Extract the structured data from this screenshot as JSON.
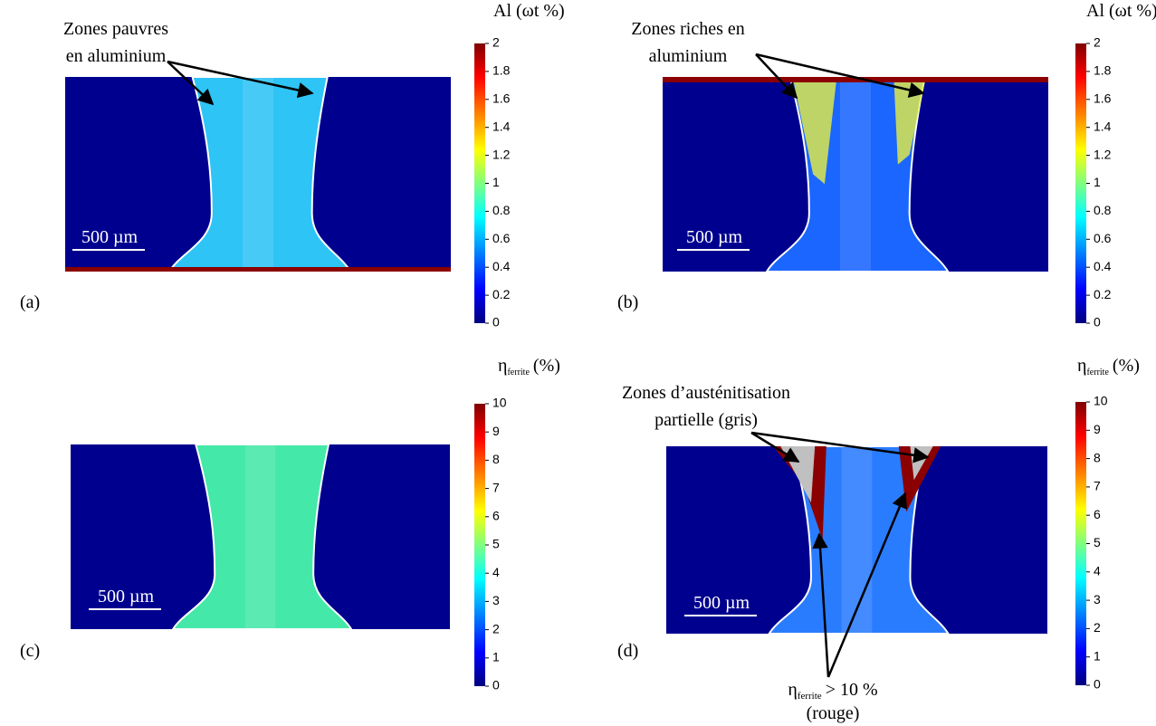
{
  "panels": [
    {
      "label": "(a)",
      "colorbar": {
        "title": "Al (ωt %)",
        "ticks": [
          0,
          0.2,
          0.4,
          0.6,
          0.8,
          1,
          1.2,
          1.4,
          1.6,
          1.8,
          2
        ]
      },
      "scale_bar": "500 µm",
      "annotation": {
        "lines": [
          "Zones pauvres",
          "en aluminium"
        ]
      }
    },
    {
      "label": "(b)",
      "colorbar": {
        "title": "Al (ωt %)",
        "ticks": [
          0,
          0.2,
          0.4,
          0.6,
          0.8,
          1,
          1.2,
          1.4,
          1.6,
          1.8,
          2
        ]
      },
      "scale_bar": "500 µm",
      "annotation": {
        "lines": [
          "Zones riches en",
          "aluminium"
        ]
      }
    },
    {
      "label": "(c)",
      "colorbar": {
        "title": {
          "symbol": "η",
          "subscript": "ferrite",
          "unit": "(%)"
        },
        "ticks": [
          0,
          1,
          2,
          3,
          4,
          5,
          6,
          7,
          8,
          9,
          10
        ]
      },
      "scale_bar": "500 µm"
    },
    {
      "label": "(d)",
      "colorbar": {
        "title": {
          "symbol": "η",
          "subscript": "ferrite",
          "unit": "(%)"
        },
        "ticks": [
          0,
          1,
          2,
          3,
          4,
          5,
          6,
          7,
          8,
          9,
          10
        ]
      },
      "scale_bar": "500 µm",
      "annotation": {
        "lines": [
          "Zones d’austénitisation",
          "partielle (gris)"
        ]
      },
      "annotation_bottom": {
        "symbol": "η",
        "subscript": "ferrite",
        "relation": "> 10 %",
        "note": "(rouge)"
      }
    }
  ]
}
